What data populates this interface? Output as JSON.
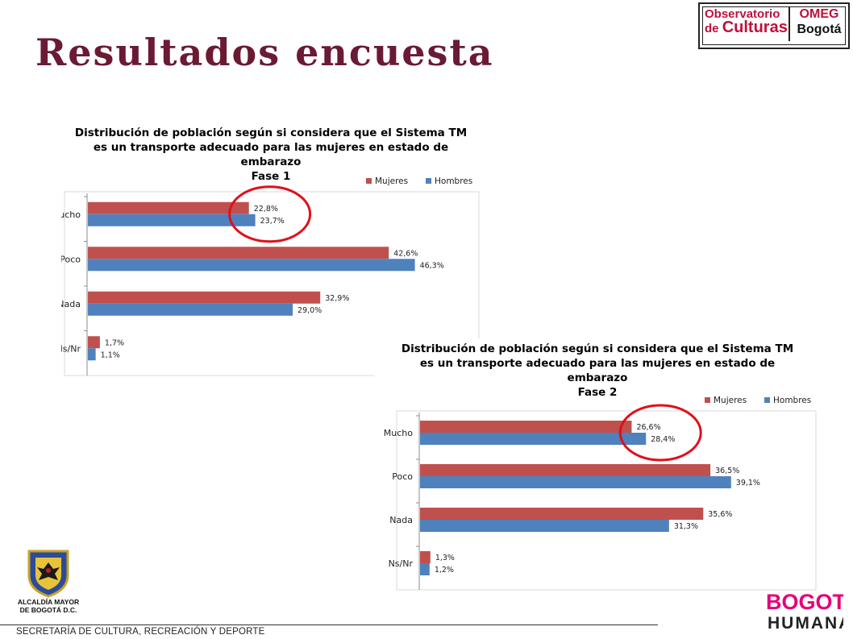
{
  "slide": {
    "title": "Resultados encuesta",
    "footer": "SECRETARÍA DE CULTURA, RECREACIÓN Y DEPORTE"
  },
  "logos": {
    "observatorio": {
      "line1": "Observatorio",
      "line2_prefix": "de ",
      "line2_main": "Culturas",
      "right1": "OMEG",
      "right2": "Bogotá"
    },
    "alcaldia": {
      "line1": "ALCALDÍA MAYOR",
      "line2": "DE BOGOTÁ D.C."
    },
    "bogota_humana": {
      "line1": "BOGOTÁ",
      "line2": "HUMANA"
    }
  },
  "colors": {
    "mujeres": "#c0504d",
    "hombres": "#4f81bd",
    "title": "#6b1a33",
    "highlight": "#e0101a"
  },
  "chart_data": [
    {
      "type": "bar",
      "orientation": "horizontal",
      "title_lines": [
        "Distribución de población según si considera que el Sistema TM",
        "es un transporte adecuado para las mujeres en estado de",
        "embarazo",
        "Fase 1"
      ],
      "categories": [
        "Mucho",
        "Poco",
        "Nada",
        "Ns/Nr"
      ],
      "series": [
        {
          "name": "Mujeres",
          "values": [
            22.8,
            42.6,
            32.9,
            1.7
          ],
          "labels": [
            "22,8%",
            "42,6%",
            "32,9%",
            "1,7%"
          ]
        },
        {
          "name": "Hombres",
          "values": [
            23.7,
            46.3,
            29.0,
            1.1
          ],
          "labels": [
            "23,7%",
            "46,3%",
            "29,0%",
            "1,1%"
          ]
        }
      ],
      "xlim": [
        0,
        50
      ],
      "legend": "top-right",
      "highlight_category": "Mucho"
    },
    {
      "type": "bar",
      "orientation": "horizontal",
      "title_lines": [
        "Distribución de población según si considera que el Sistema TM",
        "es un transporte adecuado para las mujeres en estado de",
        "embarazo",
        "Fase 2"
      ],
      "categories": [
        "Mucho",
        "Poco",
        "Nada",
        "Ns/Nr"
      ],
      "series": [
        {
          "name": "Mujeres",
          "values": [
            26.6,
            36.5,
            35.6,
            1.3
          ],
          "labels": [
            "26,6%",
            "36,5%",
            "35,6%",
            "1,3%"
          ]
        },
        {
          "name": "Hombres",
          "values": [
            28.4,
            39.1,
            31.3,
            1.2
          ],
          "labels": [
            "28,4%",
            "39,1%",
            "31,3%",
            "1,2%"
          ]
        }
      ],
      "xlim": [
        0,
        45
      ],
      "legend": "top-right",
      "highlight_category": "Mucho"
    }
  ]
}
